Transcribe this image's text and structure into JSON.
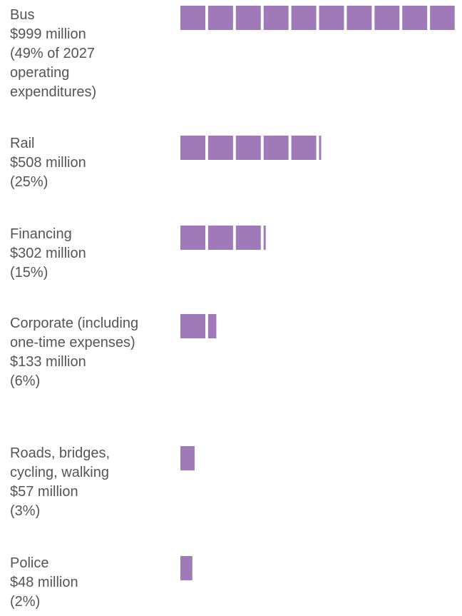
{
  "chart_data": {
    "type": "pictogram-bar",
    "color": "#a07ab8",
    "categories": [
      "Bus",
      "Rail",
      "Financing",
      "Corporate (including one-time expenses)",
      "Roads, bridges, cycling, walking",
      "Police"
    ],
    "values": [
      999,
      508,
      302,
      133,
      57,
      48
    ],
    "value_labels": [
      "$999 million",
      "$508 million",
      "$302 million",
      "$133 million",
      "$57 million",
      "$48 million"
    ],
    "shares": [
      49,
      25,
      15,
      6,
      3,
      2
    ],
    "share_labels": [
      "(49% of 2027 operating expenditures)",
      "(25%)",
      "(15%)",
      "(6%)",
      "(3%)",
      "(2%)"
    ]
  }
}
